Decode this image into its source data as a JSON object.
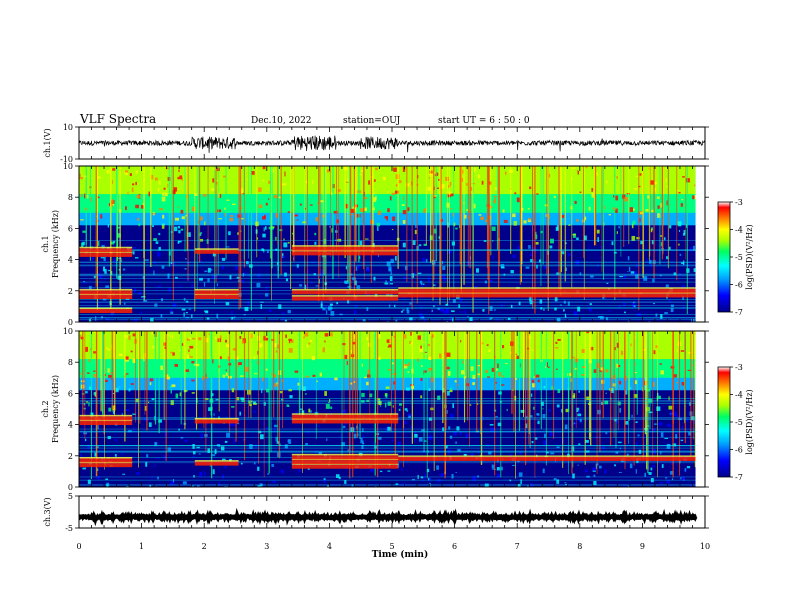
{
  "header": {
    "title": "VLF Spectra",
    "date": "Dec.10, 2022",
    "station": "station=OUJ",
    "start": "start  UT =   6 : 50 : 0"
  },
  "colors": {
    "background": "#ffffff",
    "trace": "#000000",
    "colormap": [
      "#00008b",
      "#0000ff",
      "#00a0ff",
      "#00ffff",
      "#00ff80",
      "#aaff00",
      "#ffff00",
      "#ff8000",
      "#ff0000",
      "#ffffff"
    ]
  },
  "chart_data": [
    {
      "type": "line",
      "panel": "ch1",
      "ylabel": "ch.1(V)",
      "ylim": [
        -10,
        10
      ],
      "yticks": [
        "10",
        "-10"
      ],
      "xlim": [
        0,
        10
      ],
      "baseline": 0,
      "noise_amplitude": 1.5,
      "bursts": [
        {
          "x": [
            1.8,
            2.5
          ],
          "amplitude": 4
        },
        {
          "x": [
            3.4,
            4.1
          ],
          "amplitude": 5
        },
        {
          "x": [
            4.5,
            5.1
          ],
          "amplitude": 4
        }
      ]
    },
    {
      "type": "heatmap",
      "panel": "ch1-spectrogram",
      "ylabel": "ch.1\nFrequency  (kHz)",
      "xlim": [
        0,
        10
      ],
      "ylim": [
        0,
        10
      ],
      "yticks": [
        "0",
        "2",
        "4",
        "6",
        "8",
        "10"
      ],
      "colorbar": {
        "label": "log(PSD)(V²/Hz)",
        "range": [
          -7,
          -3
        ],
        "ticks": [
          "-3",
          "-4",
          "-5",
          "-6",
          "-7"
        ]
      },
      "band_segments": [
        {
          "x": [
            0,
            0.85
          ],
          "freqs": [
            0.7,
            1.6,
            1.9,
            4.3,
            4.6
          ]
        },
        {
          "x": [
            1.85,
            2.55
          ],
          "freqs": [
            1.6,
            1.9,
            4.5
          ]
        },
        {
          "x": [
            3.4,
            5.1
          ],
          "freqs": [
            1.5,
            1.9,
            4.4,
            4.7
          ]
        },
        {
          "x": [
            5.1,
            9.85
          ],
          "freqs": [
            1.7,
            2.0
          ]
        }
      ]
    },
    {
      "type": "heatmap",
      "panel": "ch2-spectrogram",
      "ylabel": "ch.2\nFrequency  (kHz)",
      "xlim": [
        0,
        10
      ],
      "ylim": [
        0,
        10
      ],
      "yticks": [
        "0",
        "2",
        "4",
        "6",
        "8",
        "10"
      ],
      "colorbar": {
        "label": "log(PSD)(V²/Hz)",
        "range": [
          -7,
          -3
        ],
        "ticks": [
          "-3",
          "-4",
          "-5",
          "-6",
          "-7"
        ]
      },
      "band_segments": [
        {
          "x": [
            0,
            0.85
          ],
          "freqs": [
            1.4,
            1.7,
            4.1,
            4.4
          ]
        },
        {
          "x": [
            1.85,
            2.55
          ],
          "freqs": [
            1.5,
            4.2
          ]
        },
        {
          "x": [
            3.4,
            5.1
          ],
          "freqs": [
            1.3,
            1.6,
            1.9,
            4.2,
            4.5
          ]
        },
        {
          "x": [
            5.1,
            9.85
          ],
          "freqs": [
            1.8
          ]
        }
      ]
    },
    {
      "type": "line",
      "panel": "ch3",
      "ylabel": "ch.3(V)",
      "ylim": [
        -5,
        5
      ],
      "yticks": [
        "5",
        "-5"
      ],
      "xlim": [
        0,
        9.85
      ],
      "baseline": -1.6,
      "noise_amplitude": 0.3
    }
  ],
  "xaxis": {
    "label": "Time  (min)",
    "ticks": [
      "0",
      "1",
      "2",
      "3",
      "4",
      "5",
      "6",
      "7",
      "8",
      "9",
      "10"
    ]
  }
}
